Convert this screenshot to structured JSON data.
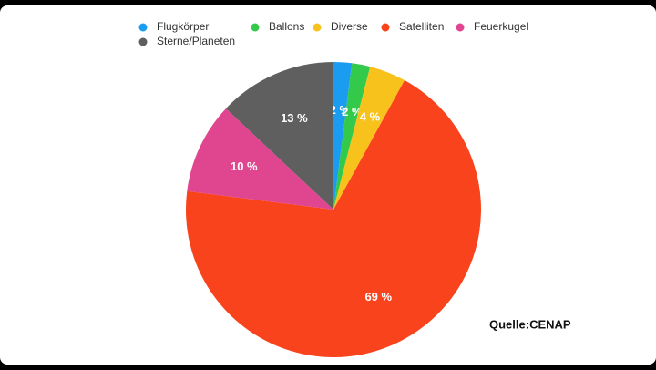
{
  "chart_data": {
    "type": "pie",
    "categories": [
      "Flugkörper",
      "Ballons",
      "Diverse",
      "Satelliten",
      "Feuerkugel",
      "Sterne/Planeten"
    ],
    "values": [
      2,
      2,
      4,
      69,
      10,
      13
    ],
    "value_labels": [
      "2 %",
      "2 %",
      "4 %",
      "69 %",
      "10 %",
      "13 %"
    ],
    "colors": [
      "#1a9cf0",
      "#33c94a",
      "#f8c21c",
      "#f8431c",
      "#e0468f",
      "#5f5f5f"
    ],
    "annotation": "Quelle:CENAP"
  }
}
